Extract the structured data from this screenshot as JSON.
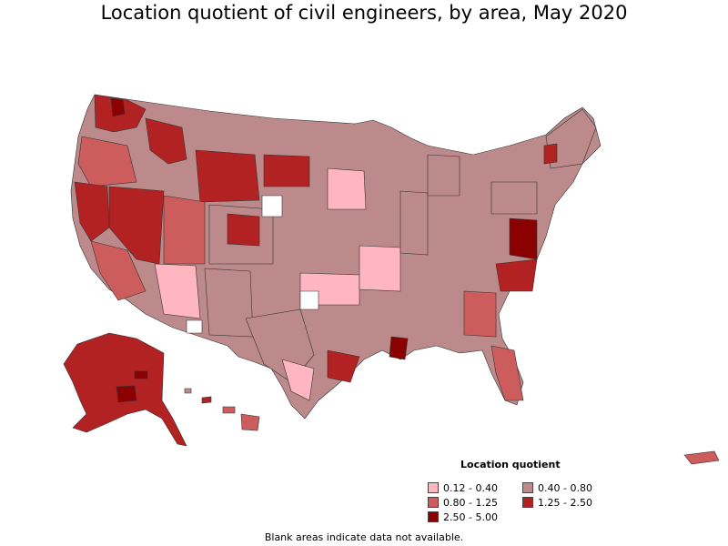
{
  "title": "Location quotient of civil engineers, by area, May 2020",
  "legend": {
    "title": "Location quotient",
    "items": [
      {
        "label": "0.12 - 0.40",
        "color": "#ffb6c1"
      },
      {
        "label": "0.40 - 0.80",
        "color": "#bc8a8a"
      },
      {
        "label": "0.80 - 1.25",
        "color": "#cd5c5c"
      },
      {
        "label": "1.25 - 2.50",
        "color": "#b22222"
      },
      {
        "label": "2.50 - 5.00",
        "color": "#8b0000"
      }
    ]
  },
  "footnote": "Blank areas indicate data not available.",
  "colors": {
    "c1": "#ffb6c1",
    "c2": "#bc8a8a",
    "c3": "#cd5c5c",
    "c4": "#b22222",
    "c5": "#8b0000",
    "blank": "#ffffff"
  }
}
